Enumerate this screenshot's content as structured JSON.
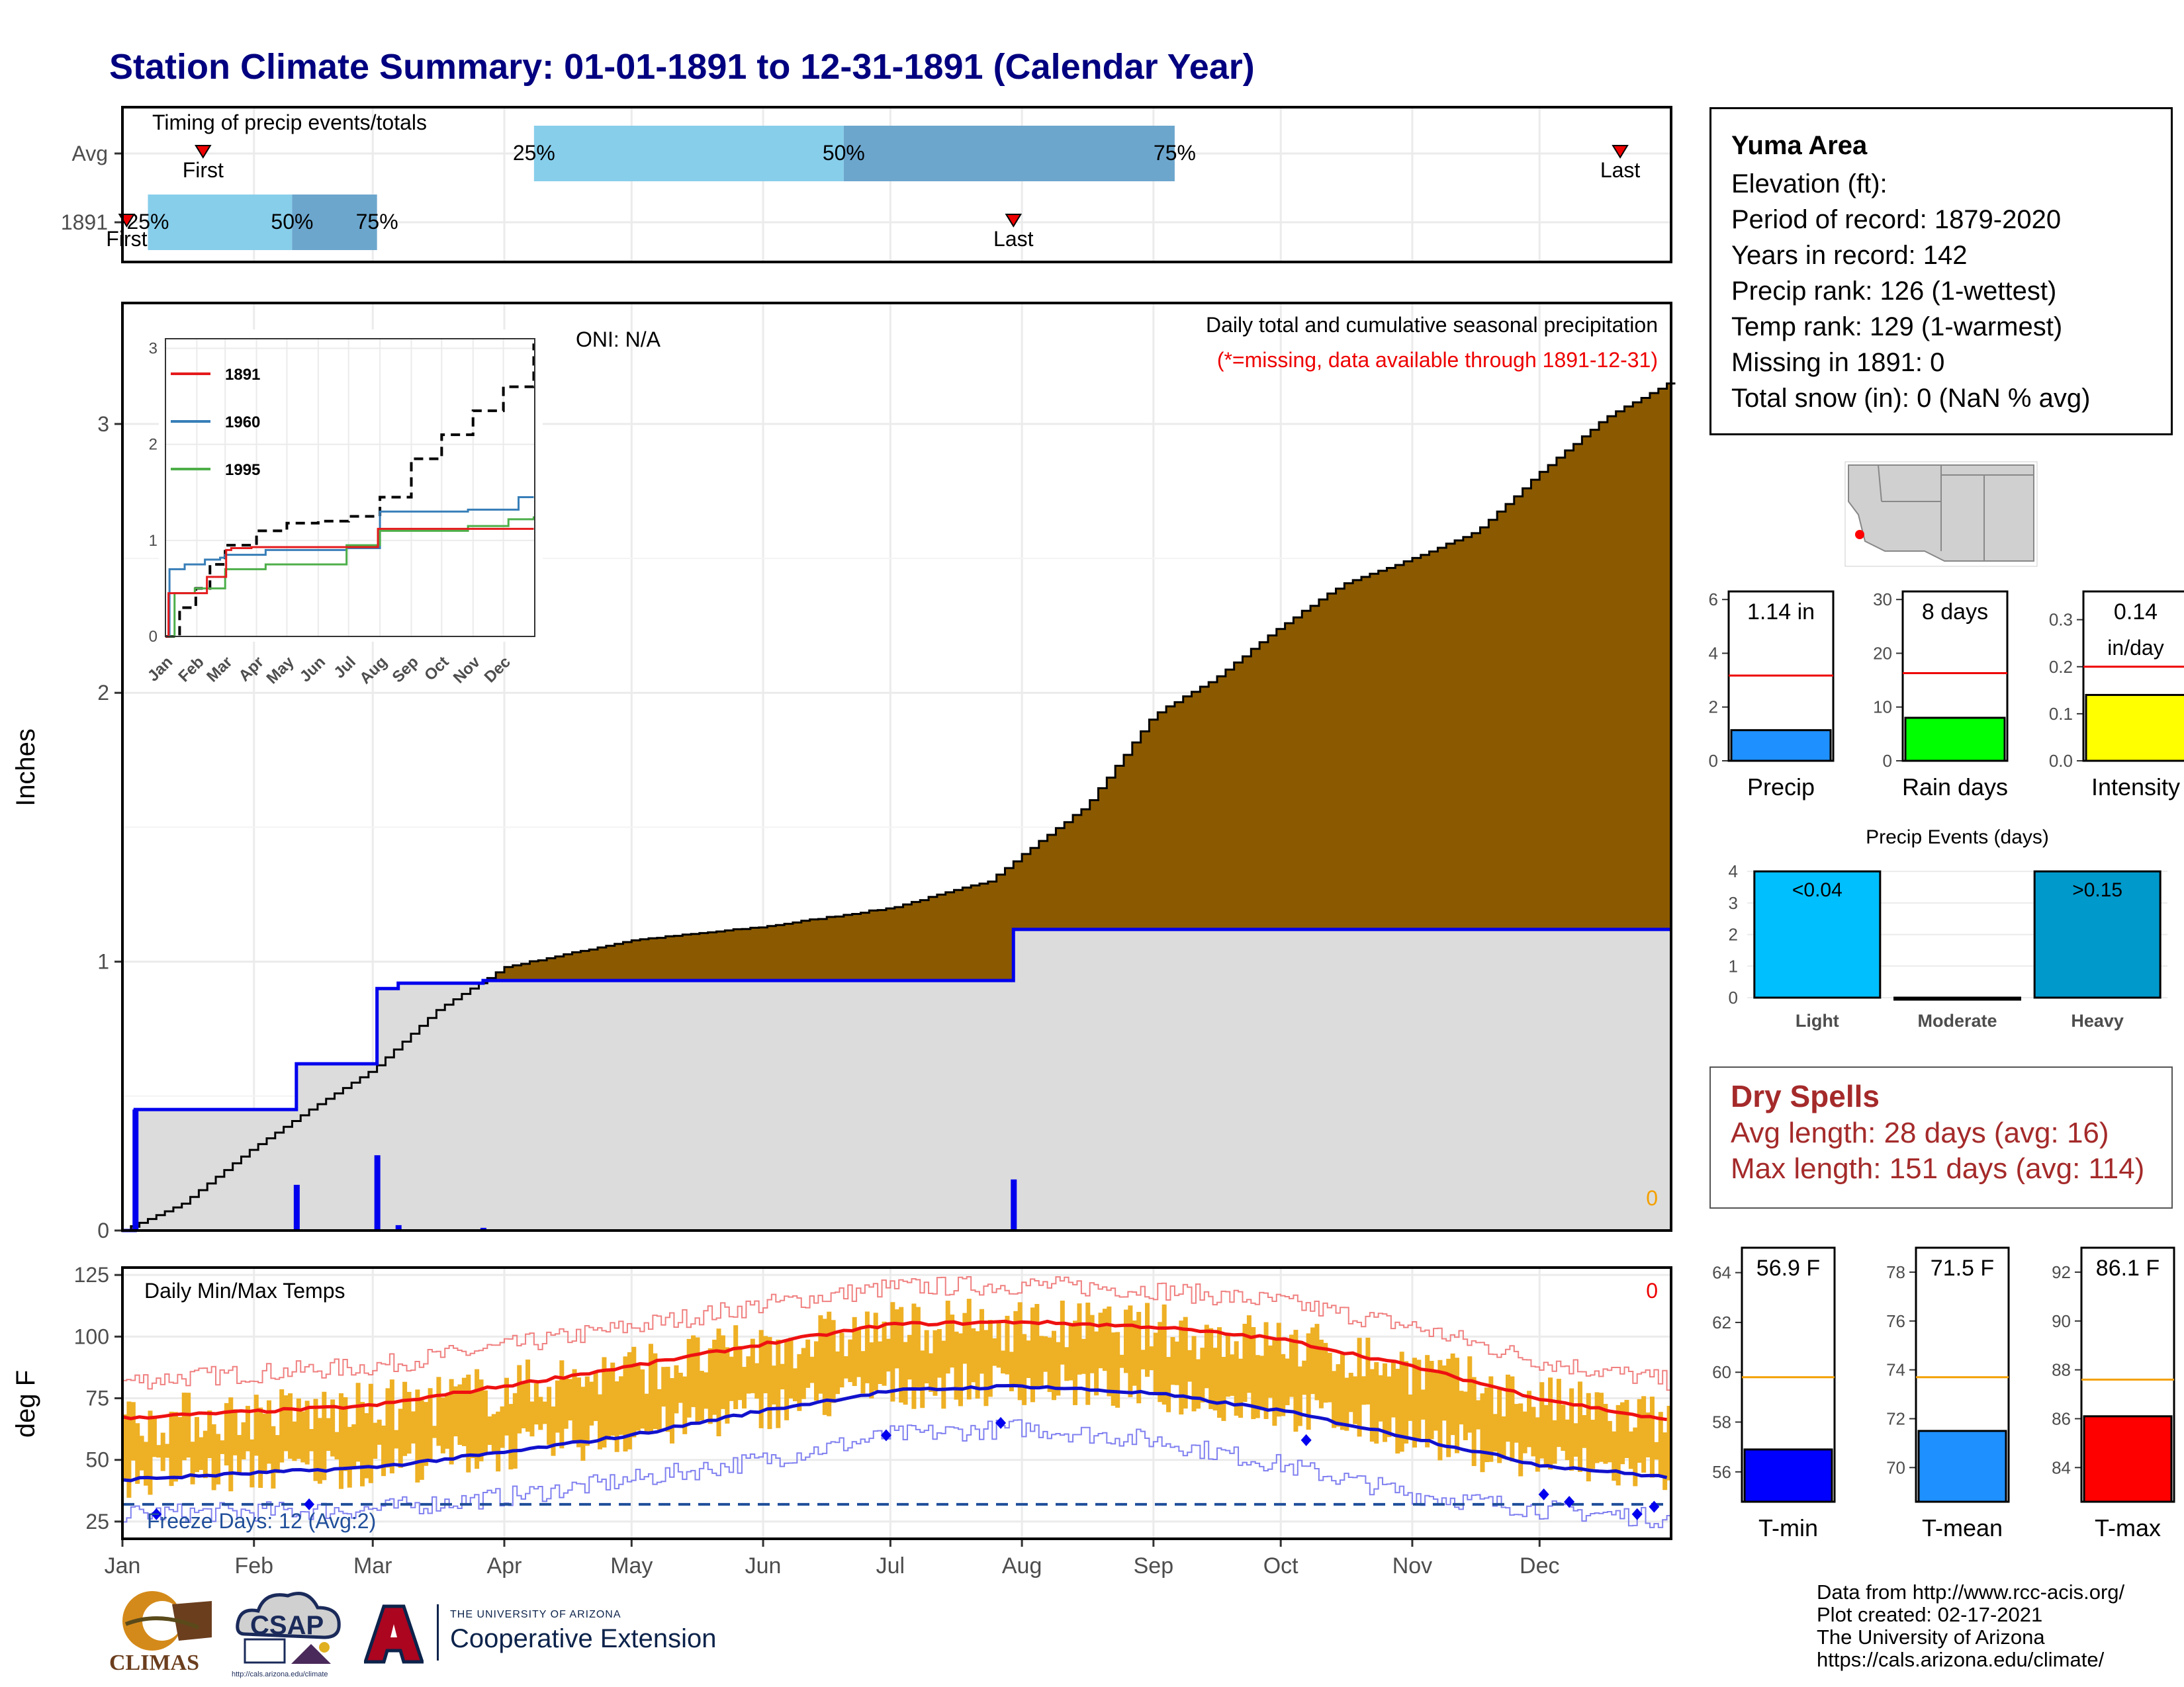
{
  "title": "Station Climate Summary: 01-01-1891 to 12-31-1891 (Calendar Year)",
  "months": [
    "Jan",
    "Feb",
    "Mar",
    "Apr",
    "May",
    "Jun",
    "Jul",
    "Aug",
    "Sep",
    "Oct",
    "Nov",
    "Dec"
  ],
  "month_starts_doy": [
    1,
    32,
    60,
    91,
    121,
    152,
    182,
    213,
    244,
    274,
    305,
    335
  ],
  "timing": {
    "title": "Timing of precip events/totals",
    "rows": [
      {
        "label": "Avg",
        "first_doy": 20,
        "last_doy": 354,
        "p25_doy": 98,
        "p50_doy": 171,
        "p75_doy": 249,
        "labels": {
          "first": "First",
          "last": "Last",
          "p25": "25%",
          "p50": "50%",
          "p75": "75%"
        }
      },
      {
        "label": "1891",
        "first_doy": 2,
        "last_doy": 211,
        "p25_doy": 7,
        "p50_doy": 41,
        "p75_doy": 61,
        "labels": {
          "first": "First",
          "last": "Last",
          "p25": "25%",
          "p50": "50%",
          "p75": "75%"
        }
      }
    ]
  },
  "precip": {
    "ylabel": "Inches",
    "oni": "ONI: N/A",
    "subtitle": "Daily total and cumulative seasonal precipitation",
    "missing_note": "(*=missing, data available through 1891-12-31)",
    "missing_count": "0",
    "yticks": [
      0,
      1,
      2,
      3
    ],
    "ylim": [
      0,
      3.45
    ],
    "avg_cumulative": [
      [
        1,
        0
      ],
      [
        15,
        0.1
      ],
      [
        31,
        0.3
      ],
      [
        45,
        0.45
      ],
      [
        60,
        0.6
      ],
      [
        75,
        0.82
      ],
      [
        91,
        0.98
      ],
      [
        121,
        1.08
      ],
      [
        152,
        1.13
      ],
      [
        182,
        1.2
      ],
      [
        205,
        1.3
      ],
      [
        213,
        1.4
      ],
      [
        228,
        1.58
      ],
      [
        244,
        1.92
      ],
      [
        258,
        2.05
      ],
      [
        274,
        2.25
      ],
      [
        288,
        2.4
      ],
      [
        305,
        2.5
      ],
      [
        320,
        2.6
      ],
      [
        335,
        2.82
      ],
      [
        350,
        3.02
      ],
      [
        365,
        3.15
      ]
    ],
    "daily_1891": [
      [
        4,
        0.45
      ],
      [
        42,
        0.17
      ],
      [
        61,
        0.28
      ],
      [
        66,
        0.02
      ],
      [
        86,
        0.01
      ],
      [
        211,
        0.19
      ]
    ]
  },
  "inset": {
    "xticks": [
      "Jan",
      "Feb",
      "Mar",
      "Apr",
      "May",
      "Jun",
      "Jul",
      "Aug",
      "Sep",
      "Oct",
      "Nov",
      "Dec"
    ],
    "yticks": [
      0,
      1,
      2,
      3
    ],
    "ylim": [
      0,
      3.1
    ],
    "legend": [
      "1891",
      "1960",
      "1995"
    ],
    "colors": {
      "1891": "#e41a1c",
      "1960": "#377eb8",
      "1995": "#4daf4a"
    },
    "avg_dash": [
      [
        1,
        0
      ],
      [
        15,
        0.3
      ],
      [
        31,
        0.5
      ],
      [
        45,
        0.75
      ],
      [
        60,
        0.95
      ],
      [
        91,
        1.1
      ],
      [
        121,
        1.18
      ],
      [
        152,
        1.2
      ],
      [
        182,
        1.25
      ],
      [
        213,
        1.45
      ],
      [
        244,
        1.85
      ],
      [
        274,
        2.1
      ],
      [
        305,
        2.35
      ],
      [
        335,
        2.6
      ],
      [
        365,
        3.05
      ]
    ],
    "series_1960": [
      [
        1,
        0
      ],
      [
        5,
        0.7
      ],
      [
        20,
        0.75
      ],
      [
        40,
        0.8
      ],
      [
        55,
        0.82
      ],
      [
        60,
        0.85
      ],
      [
        100,
        0.9
      ],
      [
        150,
        0.9
      ],
      [
        180,
        0.92
      ],
      [
        213,
        1.3
      ],
      [
        300,
        1.32
      ],
      [
        350,
        1.45
      ],
      [
        365,
        1.45
      ]
    ],
    "series_1995": [
      [
        1,
        0
      ],
      [
        10,
        0.45
      ],
      [
        30,
        0.5
      ],
      [
        60,
        0.7
      ],
      [
        90,
        0.7
      ],
      [
        100,
        0.75
      ],
      [
        150,
        0.75
      ],
      [
        180,
        0.95
      ],
      [
        213,
        1.1
      ],
      [
        300,
        1.15
      ],
      [
        340,
        1.22
      ],
      [
        365,
        1.25
      ]
    ]
  },
  "temps": {
    "ylabel": "deg F",
    "title": "Daily Min/Max Temps",
    "missing_count": "0",
    "freeze": "Freeze Days: 12 (Avg:2)",
    "yticks": [
      25,
      50,
      75,
      100,
      125
    ],
    "ylim": [
      18,
      128
    ],
    "freeze_line": 32,
    "avg_max": [
      [
        1,
        67
      ],
      [
        60,
        72
      ],
      [
        91,
        80
      ],
      [
        121,
        88
      ],
      [
        152,
        97
      ],
      [
        182,
        105
      ],
      [
        213,
        106
      ],
      [
        244,
        104
      ],
      [
        274,
        99
      ],
      [
        305,
        88
      ],
      [
        335,
        75
      ],
      [
        365,
        66
      ]
    ],
    "avg_min": [
      [
        1,
        42
      ],
      [
        60,
        47
      ],
      [
        91,
        53
      ],
      [
        121,
        60
      ],
      [
        152,
        70
      ],
      [
        182,
        78
      ],
      [
        213,
        80
      ],
      [
        244,
        77
      ],
      [
        274,
        70
      ],
      [
        305,
        59
      ],
      [
        335,
        48
      ],
      [
        365,
        43
      ]
    ],
    "rec_max": [
      [
        1,
        82
      ],
      [
        60,
        88
      ],
      [
        91,
        96
      ],
      [
        121,
        104
      ],
      [
        152,
        113
      ],
      [
        182,
        120
      ],
      [
        213,
        121
      ],
      [
        244,
        119
      ],
      [
        274,
        114
      ],
      [
        305,
        104
      ],
      [
        335,
        90
      ],
      [
        365,
        82
      ]
    ],
    "rec_min": [
      [
        1,
        28
      ],
      [
        60,
        30
      ],
      [
        91,
        35
      ],
      [
        121,
        42
      ],
      [
        152,
        50
      ],
      [
        182,
        60
      ],
      [
        213,
        63
      ],
      [
        244,
        58
      ],
      [
        274,
        48
      ],
      [
        305,
        36
      ],
      [
        335,
        30
      ],
      [
        365,
        26
      ]
    ],
    "freeze_points": [
      [
        9,
        28
      ],
      [
        45,
        32
      ],
      [
        181,
        60
      ],
      [
        208,
        65
      ],
      [
        280,
        58
      ],
      [
        336,
        36
      ],
      [
        342,
        33
      ],
      [
        358,
        28
      ],
      [
        362,
        31
      ]
    ]
  },
  "bars": {
    "precip": {
      "label": "Precip",
      "text": "1.14 in",
      "value": 1.14,
      "avg": 3.17,
      "yticks": [
        0,
        2,
        4,
        6
      ],
      "ylim": [
        0,
        6.3
      ]
    },
    "raindays": {
      "label": "Rain days",
      "text": "8 days",
      "value": 8,
      "avg": 16.3,
      "yticks": [
        0,
        10,
        20,
        30
      ],
      "ylim": [
        0,
        31.5
      ]
    },
    "intensity": {
      "label": "Intensity",
      "text": "0.14",
      "text2": "in/day",
      "value": 0.14,
      "avg": 0.2,
      "yticks": [
        "0.0",
        "0.1",
        "0.2",
        "0.3"
      ],
      "ylim": [
        0,
        0.36
      ]
    },
    "events": {
      "title": "Precip Events (days)",
      "categories": [
        "Light",
        "Moderate",
        "Heavy"
      ],
      "values": [
        4,
        0,
        4
      ],
      "labels": [
        "<0.04",
        "",
        ">0.15"
      ],
      "yticks": [
        0,
        1,
        2,
        3,
        4
      ],
      "ylim": [
        0,
        4.15
      ]
    },
    "tmin": {
      "label": "T-min",
      "text": "56.9 F",
      "value": 56.9,
      "avg": 59.8,
      "yticks": [
        56,
        58,
        60,
        62,
        64
      ],
      "ylim": [
        54.8,
        65
      ]
    },
    "tmean": {
      "label": "T-mean",
      "text": "71.5 F",
      "value": 71.5,
      "avg": 73.7,
      "yticks": [
        70,
        72,
        74,
        76,
        78
      ],
      "ylim": [
        68.6,
        79
      ]
    },
    "tmax": {
      "label": "T-max",
      "text": "86.1 F",
      "value": 86.1,
      "avg": 87.6,
      "yticks": [
        84,
        86,
        88,
        90,
        92
      ],
      "ylim": [
        82.6,
        93
      ]
    }
  },
  "station": {
    "name": "Yuma Area",
    "elevation": "Elevation (ft):",
    "period": "Period of record: 1879-2020",
    "years": "Years in record: 142",
    "precip_rank": "Precip rank: 126 (1-wettest)",
    "temp_rank": "Temp rank: 129 (1-warmest)",
    "missing": "Missing in 1891: 0",
    "snow": "Total snow (in): 0 (NaN % avg)"
  },
  "dry_spells": {
    "title": "Dry Spells",
    "avg": "Avg length: 28 days (avg: 16)",
    "max": "Max length: 151 days (avg: 114)"
  },
  "footer": {
    "line1": "Data from http://www.rcc-acis.org/",
    "line2": "Plot created: 02-17-2021",
    "line3": "The University of Arizona",
    "line4": "https://cals.arizona.edu/climate/"
  },
  "logos": {
    "climas": "CLIMAS",
    "csap": "CSAP",
    "csap_url": "http://cals.arizona.edu/climate",
    "ua_small": "THE UNIVERSITY OF ARIZONA",
    "ua_big": "Cooperative Extension"
  },
  "colors": {
    "cum_fill": "#8b5a00",
    "avg_fill": "#dcdcdc",
    "above": "#0a7f0a",
    "line_1891": "#0000ee",
    "temp_bars": "#eeb024",
    "avg_max": "#ee1111",
    "avg_min": "#1111cc",
    "precip_bar": "#1e90ff",
    "raindays_bar": "#00ff00",
    "intensity_bar": "#ffff00",
    "light_bar": "#00bfff",
    "heavy_bar": "#0099cc",
    "tmin_bar": "#0000ff",
    "tmean_bar": "#1e90ff",
    "tmax_bar": "#ff0000",
    "avg_line": "#f4a000"
  }
}
